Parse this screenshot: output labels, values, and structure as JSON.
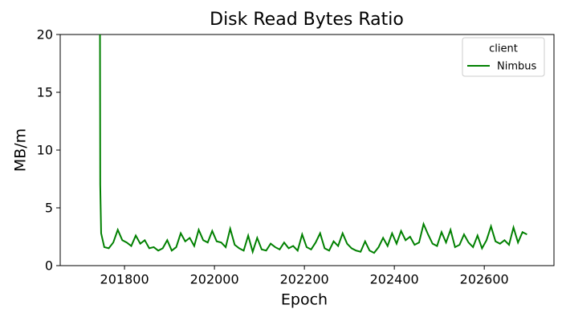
{
  "chart_data": {
    "type": "line",
    "title": "Disk Read Bytes Ratio",
    "x_label": "Epoch",
    "y_label": "MB/m",
    "legend_title": "client",
    "legend_position": "upper right",
    "x": [
      201745,
      201746,
      201748,
      201755,
      201765,
      201775,
      201785,
      201795,
      201805,
      201815,
      201825,
      201835,
      201845,
      201855,
      201865,
      201875,
      201885,
      201895,
      201905,
      201915,
      201925,
      201935,
      201945,
      201955,
      201965,
      201975,
      201985,
      201995,
      202005,
      202015,
      202025,
      202035,
      202045,
      202055,
      202065,
      202075,
      202085,
      202095,
      202105,
      202115,
      202125,
      202135,
      202145,
      202155,
      202165,
      202175,
      202185,
      202195,
      202205,
      202215,
      202225,
      202235,
      202245,
      202255,
      202265,
      202275,
      202285,
      202295,
      202305,
      202315,
      202325,
      202335,
      202345,
      202355,
      202365,
      202375,
      202385,
      202395,
      202405,
      202415,
      202425,
      202435,
      202445,
      202455,
      202465,
      202475,
      202485,
      202495,
      202505,
      202515,
      202525,
      202535,
      202545,
      202555,
      202565,
      202575,
      202585,
      202595,
      202605,
      202615,
      202625,
      202635,
      202645,
      202655,
      202665,
      202675,
      202685,
      202695
    ],
    "series": [
      {
        "name": "Nimbus",
        "color": "#008000",
        "values": [
          30,
          7,
          2.8,
          1.6,
          1.5,
          2.0,
          3.1,
          2.2,
          2.0,
          1.7,
          2.6,
          1.9,
          2.2,
          1.5,
          1.6,
          1.3,
          1.5,
          2.2,
          1.3,
          1.6,
          2.8,
          2.1,
          2.4,
          1.7,
          3.1,
          2.2,
          2.0,
          3.0,
          2.1,
          2.0,
          1.6,
          3.2,
          1.8,
          1.5,
          1.3,
          2.6,
          1.2,
          2.4,
          1.4,
          1.3,
          1.9,
          1.6,
          1.4,
          2.0,
          1.5,
          1.7,
          1.3,
          2.7,
          1.6,
          1.4,
          2.0,
          2.8,
          1.5,
          1.3,
          2.1,
          1.7,
          2.8,
          1.9,
          1.5,
          1.3,
          1.2,
          2.1,
          1.3,
          1.1,
          1.6,
          2.4,
          1.7,
          2.8,
          1.9,
          3.0,
          2.2,
          2.5,
          1.8,
          2.0,
          3.6,
          2.7,
          1.9,
          1.7,
          2.9,
          2.0,
          3.1,
          1.6,
          1.8,
          2.7,
          2.0,
          1.6,
          2.6,
          1.5,
          2.2,
          3.4,
          2.1,
          1.9,
          2.2,
          1.8,
          3.3,
          2.0,
          2.9,
          2.7
        ]
      }
    ],
    "xlim": [
      201657,
      202755
    ],
    "xticks": [
      201800,
      202000,
      202200,
      202400,
      202600
    ],
    "ylim": [
      0,
      20
    ],
    "yticks": [
      0,
      5,
      10,
      15,
      20
    ],
    "grid": false
  }
}
